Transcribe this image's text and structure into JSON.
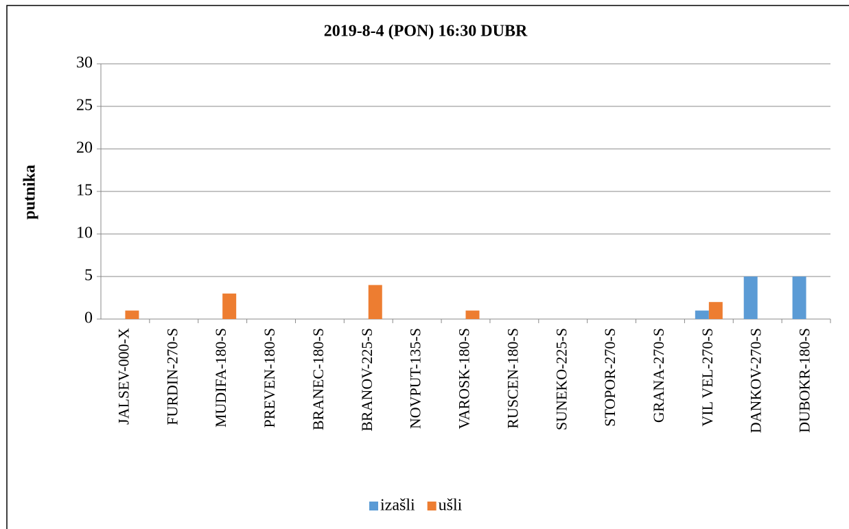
{
  "chart_data": {
    "type": "bar",
    "title": "2019-8-4 (PON) 16:30 DUBR",
    "y_label": "putnika",
    "categories": [
      "JALSEV-000-X",
      "FURDIN-270-S",
      "MUDIFA-180-S",
      "PREVEN-180-S",
      "BRANEC-180-S",
      "BRANOV-225-S",
      "NOVPUT-135-S",
      "VAROSK-180-S",
      "RUSCEN-180-S",
      "SUNEKO-225-S",
      "STOPOR-270-S",
      "GRANA-270-S",
      "VIL VEL-270-S",
      "DANKOV-270-S",
      "DUBOKR-180-S"
    ],
    "series": [
      {
        "name": "izašli",
        "color": "#5b9bd5",
        "values": [
          0,
          0,
          0,
          0,
          0,
          0,
          0,
          0,
          0,
          0,
          0,
          0,
          1,
          5,
          5
        ]
      },
      {
        "name": "ušli",
        "color": "#ed7d31",
        "values": [
          1,
          0,
          3,
          0,
          0,
          4,
          0,
          1,
          0,
          0,
          0,
          0,
          2,
          0,
          0
        ]
      }
    ],
    "ylim": [
      0,
      30
    ],
    "yticks": [
      0,
      5,
      10,
      15,
      20,
      25,
      30
    ],
    "grid": true,
    "legend": "bottom"
  }
}
